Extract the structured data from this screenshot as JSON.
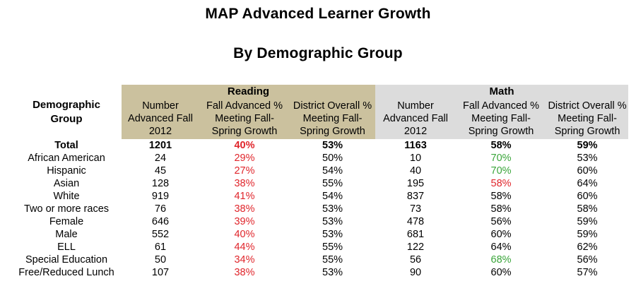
{
  "title": "MAP Advanced Learner Growth",
  "subtitle": "By Demographic Group",
  "header": {
    "demographic": "Demographic Group",
    "reading": "Reading",
    "math": "Math",
    "number_advanced": "Number Advanced Fall 2012",
    "fall_advanced": "Fall Advanced % Meeting Fall-Spring Growth",
    "district_overall": "District Overall % Meeting Fall-Spring Growth"
  },
  "colors": {
    "red": "#e0252b",
    "green": "#3aa53a",
    "reading_header": "#cbc19e",
    "math_header": "#dcdcdc"
  },
  "rows": [
    {
      "group": "Total",
      "r_num": "1201",
      "r_fall": "40%",
      "r_fall_color": "red",
      "r_dist": "53%",
      "m_num": "1163",
      "m_fall": "58%",
      "m_fall_color": "black",
      "m_dist": "59%"
    },
    {
      "group": "African American",
      "r_num": "24",
      "r_fall": "29%",
      "r_fall_color": "red",
      "r_dist": "50%",
      "m_num": "10",
      "m_fall": "70%",
      "m_fall_color": "green",
      "m_dist": "53%"
    },
    {
      "group": "Hispanic",
      "r_num": "45",
      "r_fall": "27%",
      "r_fall_color": "red",
      "r_dist": "54%",
      "m_num": "40",
      "m_fall": "70%",
      "m_fall_color": "green",
      "m_dist": "60%"
    },
    {
      "group": "Asian",
      "r_num": "128",
      "r_fall": "38%",
      "r_fall_color": "red",
      "r_dist": "55%",
      "m_num": "195",
      "m_fall": "58%",
      "m_fall_color": "red",
      "m_dist": "64%"
    },
    {
      "group": "White",
      "r_num": "919",
      "r_fall": "41%",
      "r_fall_color": "red",
      "r_dist": "54%",
      "m_num": "837",
      "m_fall": "58%",
      "m_fall_color": "black",
      "m_dist": "60%"
    },
    {
      "group": "Two or more races",
      "r_num": "76",
      "r_fall": "38%",
      "r_fall_color": "red",
      "r_dist": "53%",
      "m_num": "73",
      "m_fall": "58%",
      "m_fall_color": "black",
      "m_dist": "58%"
    },
    {
      "group": "Female",
      "r_num": "646",
      "r_fall": "39%",
      "r_fall_color": "red",
      "r_dist": "53%",
      "m_num": "478",
      "m_fall": "56%",
      "m_fall_color": "black",
      "m_dist": "59%"
    },
    {
      "group": "Male",
      "r_num": "552",
      "r_fall": "40%",
      "r_fall_color": "red",
      "r_dist": "53%",
      "m_num": "681",
      "m_fall": "60%",
      "m_fall_color": "black",
      "m_dist": "59%"
    },
    {
      "group": "ELL",
      "r_num": "61",
      "r_fall": "44%",
      "r_fall_color": "red",
      "r_dist": "55%",
      "m_num": "122",
      "m_fall": "64%",
      "m_fall_color": "black",
      "m_dist": "62%"
    },
    {
      "group": "Special Education",
      "r_num": "50",
      "r_fall": "34%",
      "r_fall_color": "red",
      "r_dist": "55%",
      "m_num": "56",
      "m_fall": "68%",
      "m_fall_color": "green",
      "m_dist": "56%"
    },
    {
      "group": "Free/Reduced Lunch",
      "r_num": "107",
      "r_fall": "38%",
      "r_fall_color": "red",
      "r_dist": "53%",
      "m_num": "90",
      "m_fall": "60%",
      "m_fall_color": "black",
      "m_dist": "57%"
    }
  ]
}
